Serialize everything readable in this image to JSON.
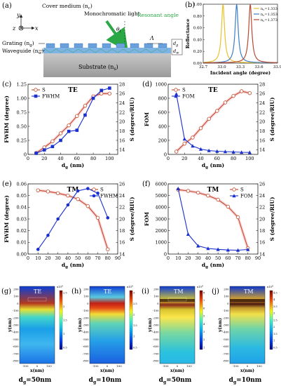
{
  "panel_labels": {
    "a": "(a)",
    "b": "(b)",
    "c": "(c)",
    "d": "(d)",
    "e": "(e)",
    "f": "(f)",
    "g": "(g)",
    "h": "(h)",
    "i": "(i)",
    "j": "(j)"
  },
  "schematic": {
    "light_label": "Monochromatic light",
    "cover_label": "Cover medium (n",
    "cover_sub": "c",
    "resonant_label": "Resonant angle",
    "theta_label": "θ",
    "theta_sub": "i",
    "grating_label": "Grating (n",
    "grating_sub": "g",
    "waveguide_label": "Waveguide (n",
    "waveguide_sub": "w",
    "substrate_label": "Substrate (n",
    "substrate_sub": "s",
    "lambda_label": "Λ",
    "dg_label": "d",
    "dg_sub": "g",
    "dw_label": "d",
    "dw_sub": "w",
    "axis_y": "y",
    "axis_z": "z",
    "axis_x": "x"
  },
  "chart_data": [
    {
      "id": "b",
      "type": "line",
      "xlabel": "Incident angle (degree)",
      "ylabel": "Reflectance",
      "xlim": [
        32.7,
        33.9
      ],
      "ylim": [
        0,
        1.0
      ],
      "xticks": [
        "32.7",
        "33.0",
        "33.3",
        "33.6",
        "33.9"
      ],
      "yticks": [
        "0.00",
        "0.20",
        "0.40",
        "0.60",
        "0.80",
        "1.00"
      ],
      "legend_position": "top-right",
      "series": [
        {
          "name": "n",
          "sub": "c",
          "value": "=1.333",
          "color": "#e8c12a",
          "center": 33.02,
          "width": 0.03
        },
        {
          "name": "n",
          "sub": "c",
          "value": "=1.353",
          "color": "#3a7ec8",
          "center": 33.24,
          "width": 0.03
        },
        {
          "name": "n",
          "sub": "c",
          "value": "=1.373",
          "color": "#b8482e",
          "center": 33.46,
          "width": 0.03
        }
      ]
    },
    {
      "id": "c",
      "type": "line",
      "mode": "TE",
      "xlabel": "d",
      "xlabel_sub": "g",
      "xlabel_unit": " (nm)",
      "ylabel_left": "FWHM (degree)",
      "ylabel_right": "S (degree/RIU)",
      "xlim": [
        0,
        110
      ],
      "ylim_left": [
        0,
        1.25
      ],
      "ylim_right": [
        13,
        28
      ],
      "xticks": [
        0,
        20,
        40,
        60,
        80,
        100
      ],
      "yticks_left": [
        0,
        0.25,
        0.5,
        0.75,
        1.0,
        1.25
      ],
      "yticks_left_labels": [
        "0",
        "0.25",
        "0.50",
        "0.75",
        "1.00",
        "1.25"
      ],
      "yticks_right": [
        14,
        16,
        18,
        20,
        22,
        24,
        26,
        28
      ],
      "legend_position": "top-left",
      "series": [
        {
          "name": "S",
          "color": "#c44a2a",
          "marker": "circle-open",
          "axis": "right",
          "x": [
            10,
            20,
            30,
            40,
            50,
            60,
            70,
            80,
            90,
            100
          ],
          "y": [
            13.3,
            14.5,
            15.8,
            17.5,
            19.2,
            21.2,
            23.4,
            25.4,
            26.0,
            26.0
          ]
        },
        {
          "name": "FWHM",
          "color": "#1a2fd0",
          "marker": "square-filled",
          "axis": "left",
          "x": [
            10,
            20,
            30,
            40,
            50,
            60,
            70,
            80,
            90,
            100
          ],
          "y": [
            0.02,
            0.08,
            0.14,
            0.25,
            0.41,
            0.43,
            0.7,
            1.0,
            1.14,
            1.18
          ]
        }
      ]
    },
    {
      "id": "d",
      "type": "line",
      "mode": "TE",
      "xlabel": "d",
      "xlabel_sub": "g",
      "xlabel_unit": " (nm)",
      "ylabel_left": "FOM",
      "ylabel_right": "S (degree/RIU)",
      "xlim": [
        0,
        110
      ],
      "ylim_left": [
        0,
        1000
      ],
      "ylim_right": [
        13,
        28
      ],
      "xticks": [
        0,
        20,
        40,
        60,
        80,
        100
      ],
      "yticks_left": [
        0,
        200,
        400,
        600,
        800,
        1000
      ],
      "yticks_right": [
        14,
        16,
        18,
        20,
        22,
        24,
        26,
        28
      ],
      "legend_position": "top-left",
      "series": [
        {
          "name": "S",
          "color": "#c44a2a",
          "marker": "circle-open",
          "axis": "right",
          "x": [
            10,
            20,
            30,
            40,
            50,
            60,
            70,
            80,
            90,
            100
          ],
          "y": [
            13.6,
            15.3,
            16.6,
            18.6,
            20.6,
            22.3,
            24.1,
            25.5,
            26.5,
            26.1
          ]
        },
        {
          "name": "FOM",
          "color": "#1a2fd0",
          "marker": "triangle-filled",
          "axis": "left",
          "x": [
            10,
            20,
            30,
            40,
            50,
            60,
            70,
            80,
            90,
            100
          ],
          "y": [
            860,
            220,
            120,
            75,
            55,
            45,
            40,
            35,
            30,
            28
          ]
        }
      ]
    },
    {
      "id": "e",
      "type": "line",
      "mode": "TM",
      "xlabel": "d",
      "xlabel_sub": "g",
      "xlabel_unit": " (nm)",
      "ylabel_left": "FWHM (degree)",
      "ylabel_right": "S (degree/RIU)",
      "xlim": [
        0,
        90
      ],
      "ylim_left": [
        0,
        0.06
      ],
      "ylim_right": [
        14,
        26
      ],
      "xticks": [
        0,
        10,
        20,
        30,
        40,
        50,
        60,
        70,
        80,
        90
      ],
      "yticks_left": [
        0,
        0.01,
        0.02,
        0.03,
        0.04,
        0.05,
        0.06
      ],
      "yticks_left_labels": [
        "0.00",
        "0.01",
        "0.02",
        "0.03",
        "0.04",
        "0.05",
        "0.06"
      ],
      "yticks_right": [
        14,
        16,
        18,
        20,
        22,
        24,
        26
      ],
      "legend_position": "top-right",
      "series": [
        {
          "name": "S",
          "color": "#c44a2a",
          "marker": "circle-open",
          "axis": "right",
          "x": [
            10,
            20,
            30,
            40,
            50,
            60,
            70,
            80
          ],
          "y": [
            24.9,
            24.7,
            24.4,
            24.0,
            23.4,
            22.2,
            20.2,
            14.8
          ]
        },
        {
          "name": "FWHM",
          "color": "#1a2fd0",
          "marker": "circle-filled",
          "axis": "left",
          "x": [
            10,
            20,
            30,
            40,
            50,
            60,
            70,
            80
          ],
          "y": [
            0.004,
            0.016,
            0.03,
            0.042,
            0.054,
            0.056,
            0.052,
            0.031
          ]
        }
      ]
    },
    {
      "id": "f",
      "type": "line",
      "mode": "TM",
      "xlabel": "d",
      "xlabel_sub": "g",
      "xlabel_unit": " (nm)",
      "ylabel_left": "FOM",
      "ylabel_right": "S (degree/RIU)",
      "xlim": [
        0,
        90
      ],
      "ylim_left": [
        0,
        6000
      ],
      "ylim_right": [
        14,
        26
      ],
      "xticks": [
        0,
        10,
        20,
        30,
        40,
        50,
        60,
        70,
        80,
        90
      ],
      "yticks_left": [
        0,
        1000,
        2000,
        3000,
        4000,
        5000,
        6000
      ],
      "yticks_right": [
        14,
        16,
        18,
        20,
        22,
        24,
        26
      ],
      "legend_position": "top-right",
      "series": [
        {
          "name": "S",
          "color": "#c44a2a",
          "marker": "circle-open",
          "axis": "right",
          "x": [
            10,
            20,
            30,
            40,
            50,
            60,
            70,
            80
          ],
          "y": [
            25.0,
            24.8,
            24.5,
            24.0,
            23.3,
            22.1,
            20.3,
            15.0
          ]
        },
        {
          "name": "FOM",
          "color": "#1a2fd0",
          "marker": "triangle-filled",
          "axis": "left",
          "x": [
            10,
            20,
            30,
            40,
            50,
            60,
            70,
            80
          ],
          "y": [
            5600,
            1700,
            700,
            480,
            400,
            350,
            330,
            390
          ]
        }
      ]
    },
    {
      "id": "g",
      "type": "heatmap",
      "mode": "TE",
      "xlabel": "x(nm)",
      "ylabel": "y(nm)",
      "xticks": [
        "-100",
        "0",
        "100"
      ],
      "yticks": [
        "200",
        "100",
        "0",
        "-100",
        "-200",
        "-300",
        "-400",
        "-500",
        "-600",
        "-700",
        "-800"
      ],
      "colorbar_exp": "x10",
      "colorbar_exp_sup": "6",
      "colorbar_ticks": [
        "2.5",
        "2",
        "1.5",
        "1",
        "0.5"
      ],
      "caption": "d",
      "caption_sub": "g",
      "caption_value": "=50nm"
    },
    {
      "id": "h",
      "type": "heatmap",
      "mode": "TE",
      "xlabel": "x(nm)",
      "ylabel": "y(nm)",
      "xticks": [
        "-100",
        "0",
        "100"
      ],
      "yticks": [
        "200",
        "100",
        "0",
        "-100",
        "-200",
        "-300",
        "-400",
        "-500",
        "-600",
        "-700",
        "-800"
      ],
      "colorbar_exp": "x10",
      "colorbar_exp_sup": "6",
      "colorbar_ticks": [
        "3",
        "2.5",
        "2",
        "1.5",
        "1",
        "0.5"
      ],
      "caption": "d",
      "caption_sub": "g",
      "caption_value": "=10nm"
    },
    {
      "id": "i",
      "type": "heatmap",
      "mode": "TM",
      "xlabel": "x(nm)",
      "ylabel": "y(nm)",
      "xticks": [
        "-100",
        "0",
        "100"
      ],
      "yticks": [
        "200",
        "100",
        "0",
        "-100",
        "-200",
        "-300",
        "-400",
        "-500",
        "-600",
        "-700",
        "-800"
      ],
      "colorbar_exp": "x10",
      "colorbar_exp_sup": "9",
      "colorbar_ticks": [
        "8",
        "7",
        "6",
        "5",
        "4",
        "3",
        "2",
        "1"
      ],
      "caption": "d",
      "caption_sub": "g",
      "caption_value": "=50nm"
    },
    {
      "id": "j",
      "type": "heatmap",
      "mode": "TM",
      "xlabel": "x(nm)",
      "ylabel": "y(nm)",
      "xticks": [
        "-100",
        "0",
        "100"
      ],
      "yticks": [
        "200",
        "100",
        "0",
        "-100",
        "-200",
        "-300",
        "-400",
        "-500",
        "-600",
        "-700",
        "-800"
      ],
      "colorbar_exp": "x10",
      "colorbar_exp_sup": "9",
      "colorbar_ticks": [
        "4.5",
        "4",
        "3.5",
        "3",
        "2.5",
        "2",
        "1.5",
        "1",
        "0.5"
      ],
      "caption": "d",
      "caption_sub": "g",
      "caption_value": "=10nm"
    }
  ]
}
